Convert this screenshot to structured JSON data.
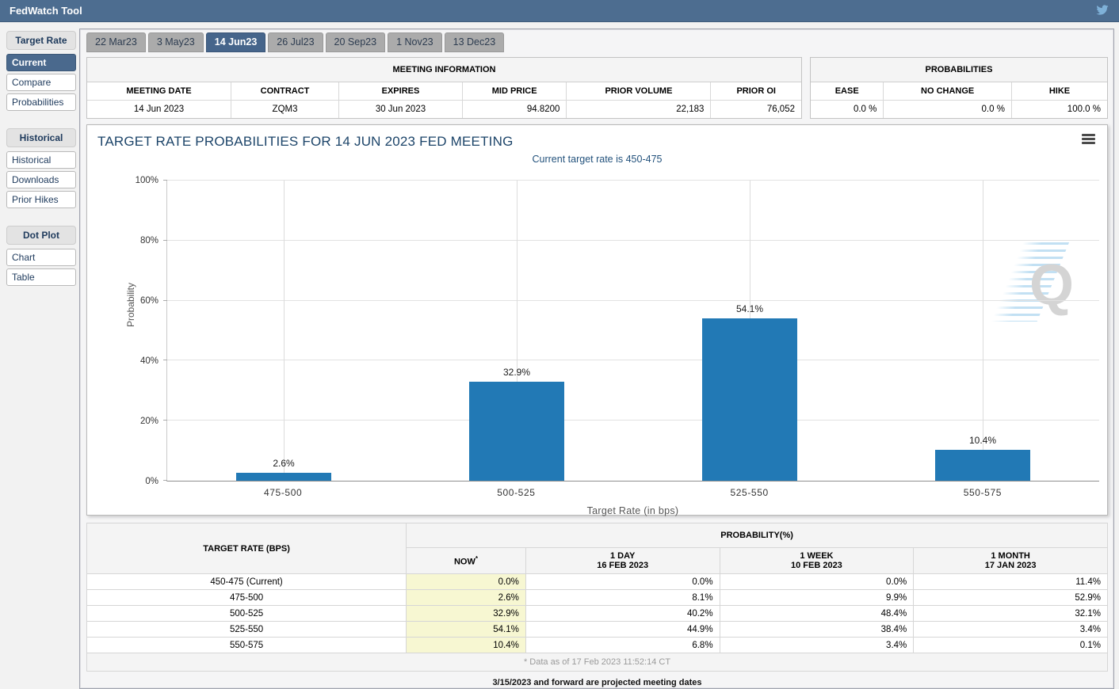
{
  "topbar": {
    "title": "FedWatch Tool"
  },
  "sidebar": {
    "groups": [
      {
        "header": "Target Rate",
        "items": [
          "Current",
          "Compare",
          "Probabilities"
        ],
        "selected": "Current"
      },
      {
        "header": "Historical",
        "items": [
          "Historical",
          "Downloads",
          "Prior Hikes"
        ]
      },
      {
        "header": "Dot Plot",
        "items": [
          "Chart",
          "Table"
        ]
      }
    ]
  },
  "tabs": {
    "items": [
      "22 Mar23",
      "3 May23",
      "14 Jun23",
      "26 Jul23",
      "20 Sep23",
      "1 Nov23",
      "13 Dec23"
    ],
    "selected": "14 Jun23"
  },
  "meeting_info": {
    "title": "MEETING INFORMATION",
    "columns": [
      "MEETING DATE",
      "CONTRACT",
      "EXPIRES",
      "MID PRICE",
      "PRIOR VOLUME",
      "PRIOR OI"
    ],
    "values": [
      "14 Jun 2023",
      "ZQM3",
      "30 Jun 2023",
      "94.8200",
      "22,183",
      "76,052"
    ]
  },
  "probabilities_box": {
    "title": "PROBABILITIES",
    "columns": [
      "EASE",
      "NO CHANGE",
      "HIKE"
    ],
    "values": [
      "0.0 %",
      "0.0 %",
      "100.0 %"
    ]
  },
  "chart": {
    "title": "TARGET RATE PROBABILITIES FOR 14 JUN 2023 FED MEETING",
    "subtitle": "Current target rate is 450-475"
  },
  "chart_data": {
    "type": "bar",
    "title": "TARGET RATE PROBABILITIES FOR 14 JUN 2023 FED MEETING",
    "subtitle": "Current target rate is 450-475",
    "categories": [
      "475-500",
      "500-525",
      "525-550",
      "550-575"
    ],
    "values": [
      2.6,
      32.9,
      54.1,
      10.4
    ],
    "value_labels": [
      "2.6%",
      "32.9%",
      "54.1%",
      "10.4%"
    ],
    "xlabel": "Target Rate (in bps)",
    "ylabel": "Probability",
    "ylim": [
      0,
      100
    ],
    "yticks": [
      0,
      20,
      40,
      60,
      80,
      100
    ],
    "ytick_labels": [
      "0%",
      "20%",
      "40%",
      "60%",
      "80%",
      "100%"
    ],
    "bar_color": "#2279b5",
    "grid": true,
    "legend": false
  },
  "prob_table": {
    "col1_header": "TARGET RATE (BPS)",
    "group_header": "PROBABILITY(%)",
    "sub_headers": [
      {
        "line1": "NOW",
        "sup": "*"
      },
      {
        "line1": "1 DAY",
        "line2": "16 FEB 2023"
      },
      {
        "line1": "1 WEEK",
        "line2": "10 FEB 2023"
      },
      {
        "line1": "1 MONTH",
        "line2": "17 JAN 2023"
      }
    ],
    "rows": [
      {
        "rate": "450-475 (Current)",
        "now": "0.0%",
        "d1": "0.0%",
        "w1": "0.0%",
        "m1": "11.4%"
      },
      {
        "rate": "475-500",
        "now": "2.6%",
        "d1": "8.1%",
        "w1": "9.9%",
        "m1": "52.9%"
      },
      {
        "rate": "500-525",
        "now": "32.9%",
        "d1": "40.2%",
        "w1": "48.4%",
        "m1": "32.1%"
      },
      {
        "rate": "525-550",
        "now": "54.1%",
        "d1": "44.9%",
        "w1": "38.4%",
        "m1": "3.4%"
      },
      {
        "rate": "550-575",
        "now": "10.4%",
        "d1": "6.8%",
        "w1": "3.4%",
        "m1": "0.1%"
      }
    ],
    "footnote": "* Data as of 17 Feb 2023 11:52:14 CT"
  },
  "note": "3/15/2023 and forward are projected meeting dates",
  "watermark": {
    "letter": "Q"
  },
  "colors": {
    "accent": "#4d6d90",
    "bar": "#2279b5",
    "now_highlight": "#f7f7d2",
    "twitter": "#7fb1d8"
  }
}
